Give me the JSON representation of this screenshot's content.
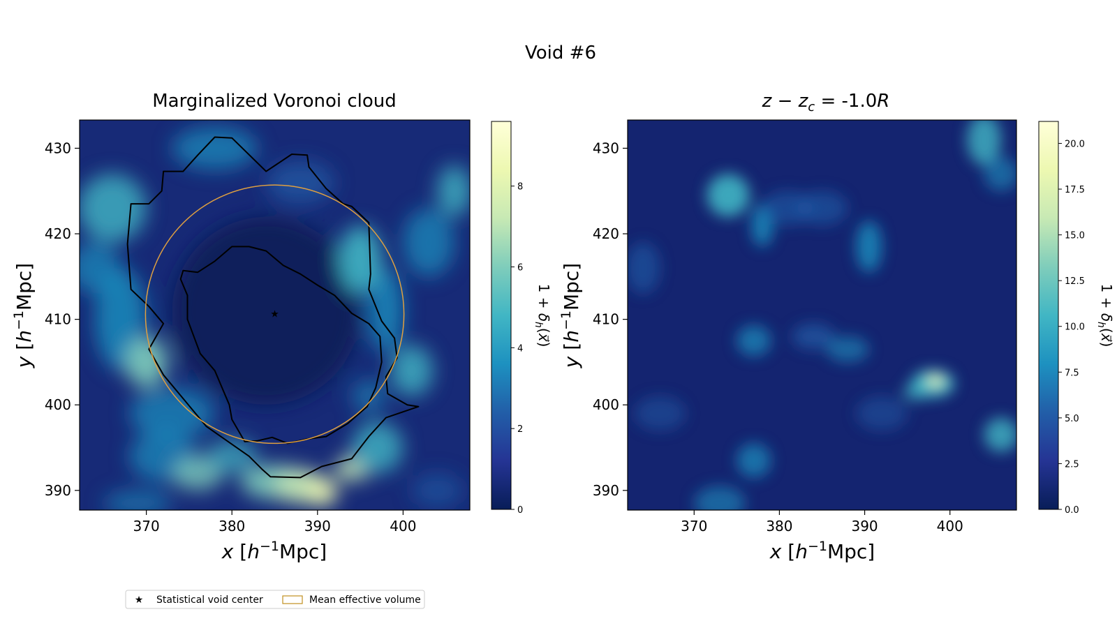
{
  "figure": {
    "suptitle": "Void #6",
    "colormap": [
      "#081d58",
      "#253494",
      "#225ea8",
      "#1d91c0",
      "#41b6c4",
      "#7fcdbb",
      "#c7e9b4",
      "#edf8b1",
      "#ffffd9"
    ],
    "accent_color": "#e0a040",
    "contour_color": "#000000",
    "legend": {
      "placement": "bottom-left",
      "items": [
        {
          "label": "Statistical void center",
          "marker": "star"
        },
        {
          "label": "Mean effective volume",
          "marker": "open-rectangle"
        }
      ]
    }
  },
  "chart_data": [
    {
      "type": "heatmap",
      "title": "Marginalized Voronoi cloud",
      "xlabel": "x [h⁻¹Mpc]",
      "ylabel": "y [h⁻¹Mpc]",
      "xlim": [
        362.2,
        407.8
      ],
      "ylim": [
        387.7,
        433.3
      ],
      "xticks": [
        370,
        380,
        390,
        400
      ],
      "yticks": [
        390,
        400,
        410,
        420,
        430
      ],
      "colorbar": {
        "label": "1 + δh(x⃗)",
        "range": [
          0,
          9.6
        ],
        "ticks": [
          0,
          2,
          4,
          6,
          8
        ]
      },
      "void_center": {
        "x": 385.0,
        "y": 410.6
      },
      "effective_radius": 15.1,
      "outer_contour": [
        [
          378,
          431.3
        ],
        [
          380,
          431.2
        ],
        [
          384,
          427.3
        ],
        [
          387,
          429.3
        ],
        [
          388.8,
          429.2
        ],
        [
          389,
          427.8
        ],
        [
          391,
          425.3
        ],
        [
          393,
          423.5
        ],
        [
          394,
          423.2
        ],
        [
          396,
          421.3
        ],
        [
          396.2,
          415.3
        ],
        [
          396,
          413.5
        ],
        [
          397.5,
          409.8
        ],
        [
          399,
          407.8
        ],
        [
          399.3,
          405.5
        ],
        [
          398,
          403.3
        ],
        [
          398.2,
          401.3
        ],
        [
          400.5,
          400.0
        ],
        [
          401.8,
          399.8
        ],
        [
          398,
          398.5
        ],
        [
          396,
          396.3
        ],
        [
          394,
          393.7
        ],
        [
          390.5,
          392.8
        ],
        [
          388,
          391.5
        ],
        [
          384.5,
          391.6
        ],
        [
          383.5,
          392.5
        ],
        [
          382,
          394.0
        ],
        [
          377,
          397.5
        ],
        [
          372,
          403.5
        ],
        [
          370.3,
          406.5
        ],
        [
          372,
          409.5
        ],
        [
          370.3,
          411.5
        ],
        [
          368.2,
          413.5
        ],
        [
          367.8,
          418.8
        ],
        [
          368.2,
          423.5
        ],
        [
          370.3,
          423.5
        ],
        [
          371.8,
          425.0
        ],
        [
          372,
          427.3
        ],
        [
          374.3,
          427.3
        ],
        [
          376,
          429.2
        ]
      ],
      "inner_contour": [
        [
          374.3,
          415.7
        ],
        [
          376,
          415.5
        ],
        [
          378,
          416.8
        ],
        [
          380,
          418.5
        ],
        [
          382,
          418.5
        ],
        [
          384,
          418.0
        ],
        [
          386,
          416.3
        ],
        [
          388,
          415.3
        ],
        [
          390,
          414.0
        ],
        [
          392,
          412.8
        ],
        [
          394,
          410.7
        ],
        [
          396,
          409.5
        ],
        [
          397.3,
          408.0
        ],
        [
          397.5,
          405.0
        ],
        [
          396.8,
          402.0
        ],
        [
          395.8,
          399.8
        ],
        [
          393.5,
          397.8
        ],
        [
          391,
          396.3
        ],
        [
          388.7,
          396.0
        ],
        [
          386.5,
          395.5
        ],
        [
          384.7,
          396.2
        ],
        [
          383,
          395.8
        ],
        [
          381.5,
          395.7
        ],
        [
          380,
          398.3
        ],
        [
          379.7,
          400.0
        ],
        [
          378,
          404.0
        ],
        [
          376.3,
          406.0
        ],
        [
          374.8,
          410.0
        ],
        [
          374.8,
          412.8
        ],
        [
          374.0,
          414.7
        ]
      ]
    },
    {
      "type": "heatmap",
      "title": "z − zc = -1.0R",
      "xlabel": "x [h⁻¹Mpc]",
      "ylabel": "y [h⁻¹Mpc]",
      "xlim": [
        362.2,
        407.8
      ],
      "ylim": [
        387.7,
        433.3
      ],
      "xticks": [
        370,
        380,
        390,
        400
      ],
      "yticks": [
        390,
        400,
        410,
        420,
        430
      ],
      "colorbar": {
        "label": "1 + δh(x⃗)",
        "range": [
          0,
          21.2
        ],
        "ticks": [
          0.0,
          2.5,
          5.0,
          7.5,
          10.0,
          12.5,
          15.0,
          17.5,
          20.0
        ]
      }
    }
  ]
}
